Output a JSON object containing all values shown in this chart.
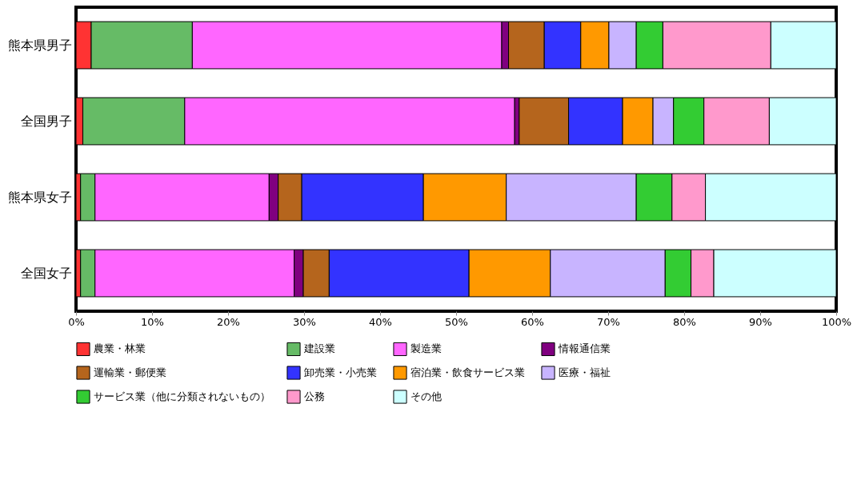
{
  "chart_data": {
    "type": "bar",
    "orientation": "horizontal",
    "stacked": true,
    "categories": [
      "熊本県男子",
      "全国男子",
      "熊本県女子",
      "全国女子"
    ],
    "series": [
      {
        "name": "農業・林業",
        "color": "#ff3333",
        "values": [
          2.0,
          0.9,
          0.6,
          0.6
        ]
      },
      {
        "name": "建設業",
        "color": "#66bb66",
        "values": [
          13.3,
          13.4,
          1.9,
          1.9
        ]
      },
      {
        "name": "製造業",
        "color": "#ff66ff",
        "values": [
          40.7,
          43.4,
          22.9,
          26.2
        ]
      },
      {
        "name": "情報通信業",
        "color": "#800080",
        "values": [
          0.9,
          0.6,
          1.2,
          1.2
        ]
      },
      {
        "name": "運輸業・郵便業",
        "color": "#b5651d",
        "values": [
          4.7,
          6.5,
          3.1,
          3.4
        ]
      },
      {
        "name": "卸売業・小売業",
        "color": "#3333ff",
        "values": [
          4.8,
          7.1,
          16.0,
          18.4
        ]
      },
      {
        "name": "宿泊業・飲食サービス業",
        "color": "#ff9900",
        "values": [
          3.7,
          4.0,
          10.9,
          10.7
        ]
      },
      {
        "name": "医療・福祉",
        "color": "#c8b4ff",
        "values": [
          3.6,
          2.7,
          17.1,
          15.1
        ]
      },
      {
        "name": "サービス業（他に分類されないもの）",
        "color": "#33cc33",
        "values": [
          3.5,
          4.0,
          4.7,
          3.4
        ]
      },
      {
        "name": "公務",
        "color": "#ff99cc",
        "values": [
          14.2,
          8.6,
          4.4,
          3.0
        ]
      },
      {
        "name": "その他",
        "color": "#ccffff",
        "values": [
          8.6,
          8.8,
          17.2,
          16.1
        ]
      }
    ],
    "xlim": [
      0,
      100
    ],
    "xticks": [
      {
        "value": 0,
        "label": "0%"
      },
      {
        "value": 10,
        "label": "10%"
      },
      {
        "value": 20,
        "label": "20%"
      },
      {
        "value": 30,
        "label": "30%"
      },
      {
        "value": 40,
        "label": "40%"
      },
      {
        "value": 50,
        "label": "50%"
      },
      {
        "value": 60,
        "label": "60%"
      },
      {
        "value": 70,
        "label": "70%"
      },
      {
        "value": 80,
        "label": "80%"
      },
      {
        "value": 90,
        "label": "90%"
      },
      {
        "value": 100,
        "label": "100%"
      }
    ],
    "grid": false,
    "legend": "bottom"
  }
}
